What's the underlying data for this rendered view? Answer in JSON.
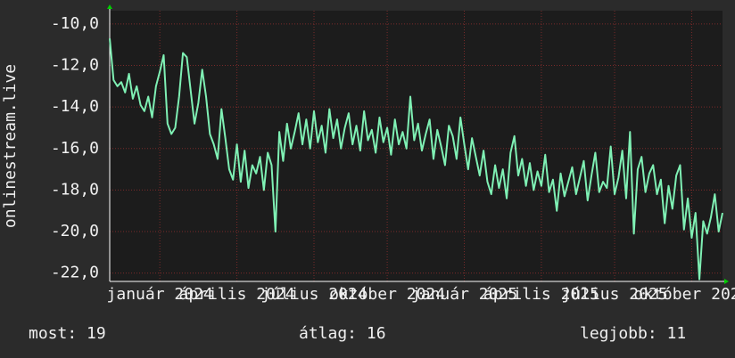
{
  "chart_data": {
    "type": "line",
    "y_label": "onlinestream.live",
    "x": [
      0,
      1,
      2,
      3,
      4,
      5,
      6,
      7,
      8,
      9,
      10,
      11,
      12,
      13,
      14,
      15,
      16,
      17,
      18,
      19,
      20,
      21,
      22,
      23,
      24,
      25,
      26,
      27,
      28,
      29,
      30,
      31,
      32,
      33,
      34,
      35,
      36,
      37,
      38,
      39,
      40,
      41,
      42,
      43,
      44,
      45,
      46,
      47,
      48,
      49,
      50,
      51,
      52,
      53,
      54,
      55,
      56,
      57,
      58,
      59,
      60,
      61,
      62,
      63,
      64,
      65,
      66,
      67,
      68,
      69,
      70,
      71,
      72,
      73,
      74,
      75,
      76,
      77,
      78,
      79,
      80,
      81,
      82,
      83,
      84,
      85,
      86,
      87,
      88,
      89,
      90,
      91,
      92,
      93,
      94,
      95,
      96,
      97,
      98,
      99,
      100,
      101,
      102,
      103,
      104,
      105,
      106,
      107,
      108,
      109,
      110,
      111,
      112,
      113,
      114,
      115,
      116,
      117,
      118,
      119,
      120,
      121,
      122,
      123,
      124,
      125,
      126,
      127,
      128,
      129,
      130,
      131,
      132,
      133,
      134,
      135,
      136,
      137,
      138,
      139,
      140,
      141,
      142,
      143,
      144,
      145,
      146,
      147,
      148,
      149,
      150,
      151,
      152,
      153,
      154,
      155,
      156,
      157,
      158,
      159
    ],
    "series": [
      {
        "name": "onlinestream.live",
        "color": "#7ff0b4",
        "values": [
          -10.7,
          -12.7,
          -13,
          -12.8,
          -13.3,
          -12.4,
          -13.6,
          -13,
          -13.9,
          -14.2,
          -13.5,
          -14.5,
          -13,
          -12.3,
          -11.5,
          -14.8,
          -15.3,
          -15,
          -13.5,
          -11.4,
          -11.6,
          -13.2,
          -14.8,
          -13.8,
          -12.2,
          -13.5,
          -15.3,
          -15.8,
          -16.5,
          -14.1,
          -15.5,
          -17,
          -17.5,
          -15.8,
          -17.6,
          -16.1,
          -17.9,
          -16.8,
          -17.2,
          -16.4,
          -18,
          -16.2,
          -16.8,
          -20,
          -15.2,
          -16.6,
          -14.8,
          -16,
          -15.2,
          -14.3,
          -15.8,
          -14.6,
          -16,
          -14.2,
          -15.7,
          -14.9,
          -16.2,
          -14.1,
          -15.5,
          -14.6,
          -16,
          -15,
          -14.3,
          -15.8,
          -14.9,
          -16.1,
          -14.2,
          -15.6,
          -15.1,
          -16.2,
          -14.5,
          -15.7,
          -15,
          -16.3,
          -14.6,
          -15.8,
          -15.2,
          -16,
          -13.5,
          -15.6,
          -14.8,
          -16.1,
          -15.3,
          -14.6,
          -16.5,
          -15.1,
          -15.9,
          -16.8,
          -14.9,
          -15.4,
          -16.5,
          -14.5,
          -15.8,
          -17,
          -15.5,
          -16.4,
          -17.3,
          -16.1,
          -17.6,
          -18.2,
          -16.8,
          -17.9,
          -17,
          -18.4,
          -16.2,
          -15.4,
          -17.3,
          -16.5,
          -17.8,
          -16.7,
          -18,
          -17.1,
          -17.8,
          -16.3,
          -18.1,
          -17.5,
          -19,
          -17.2,
          -18.3,
          -17.6,
          -16.9,
          -18.2,
          -17.4,
          -16.6,
          -18.5,
          -17.3,
          -16.2,
          -18.1,
          -17.6,
          -17.9,
          -15.9,
          -18.2,
          -17.4,
          -16.1,
          -18.4,
          -15.2,
          -20.1,
          -17,
          -16.4,
          -18.1,
          -17.2,
          -16.8,
          -18.2,
          -17.5,
          -19.6,
          -17.8,
          -18.9,
          -17.3,
          -16.8,
          -19.9,
          -18.4,
          -20.3,
          -19.1,
          -22.3,
          -19.5,
          -20.1,
          -19.3,
          -18.2,
          -20,
          -19.1
        ]
      }
    ],
    "xlim": [
      0,
      159
    ],
    "xticks": [
      {
        "value": 13,
        "label": "január 2024"
      },
      {
        "value": 33,
        "label": "április 2024"
      },
      {
        "value": 53,
        "label": "július 2024"
      },
      {
        "value": 72,
        "label": "október 2024"
      },
      {
        "value": 92,
        "label": "január 2025"
      },
      {
        "value": 112,
        "label": "április 2025"
      },
      {
        "value": 131,
        "label": "július 2025"
      },
      {
        "value": 151,
        "label": "október 2025"
      }
    ],
    "ylim": [
      -22.4,
      -9.36
    ],
    "yticks": [
      {
        "value": -22,
        "label": "-22,0"
      },
      {
        "value": -20,
        "label": "-20,0"
      },
      {
        "value": -18,
        "label": "-18,0"
      },
      {
        "value": -16,
        "label": "-16,0"
      },
      {
        "value": -14,
        "label": "-14,0"
      },
      {
        "value": -12,
        "label": "-12,0"
      },
      {
        "value": -10,
        "label": "-10,0"
      }
    ],
    "grid": true,
    "stats": [
      "most: 19",
      "átlag: 16",
      "legjobb: 11"
    ]
  }
}
